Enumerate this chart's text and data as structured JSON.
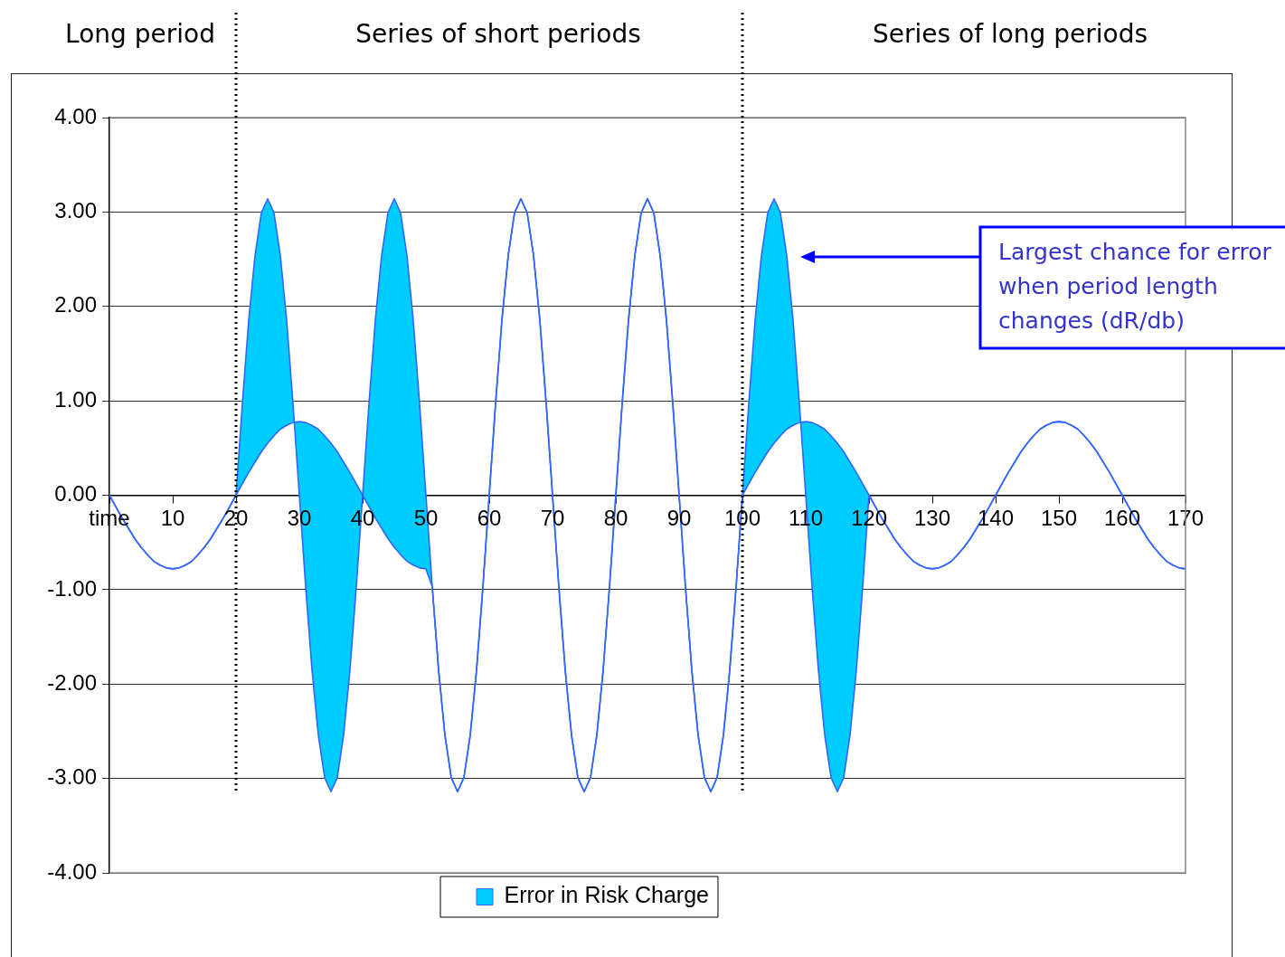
{
  "chart_data": {
    "type": "line",
    "x": [
      0,
      1,
      2,
      3,
      4,
      5,
      6,
      7,
      8,
      9,
      10,
      11,
      12,
      13,
      14,
      15,
      16,
      17,
      18,
      19,
      20,
      21,
      22,
      23,
      24,
      25,
      26,
      27,
      28,
      29,
      30,
      31,
      32,
      33,
      34,
      35,
      36,
      37,
      38,
      39,
      40,
      41,
      42,
      43,
      44,
      45,
      46,
      47,
      48,
      49,
      50,
      51,
      52,
      53,
      54,
      55,
      56,
      57,
      58,
      59,
      60,
      61,
      62,
      63,
      64,
      65,
      66,
      67,
      68,
      69,
      70,
      71,
      72,
      73,
      74,
      75,
      76,
      77,
      78,
      79,
      80,
      81,
      82,
      83,
      84,
      85,
      86,
      87,
      88,
      89,
      90,
      91,
      92,
      93,
      94,
      95,
      96,
      97,
      98,
      99,
      100,
      101,
      102,
      103,
      104,
      105,
      106,
      107,
      108,
      109,
      110,
      111,
      112,
      113,
      114,
      115,
      116,
      117,
      118,
      119,
      120,
      121,
      122,
      123,
      124,
      125,
      126,
      127,
      128,
      129,
      130,
      131,
      132,
      133,
      134,
      135,
      136,
      137,
      138,
      139,
      140,
      141,
      142,
      143,
      144,
      145,
      146,
      147,
      148,
      149,
      150,
      151,
      152,
      153,
      154,
      155,
      156,
      157,
      158,
      159,
      160,
      161,
      162,
      163,
      164,
      165,
      166,
      167,
      168,
      169,
      170
    ],
    "series": [
      {
        "color": "#3366ff",
        "values": [
          0,
          -0.12,
          -0.24,
          -0.35,
          -0.46,
          -0.55,
          -0.63,
          -0.7,
          -0.74,
          -0.77,
          -0.78,
          -0.77,
          -0.74,
          -0.7,
          -0.63,
          -0.55,
          -0.46,
          -0.35,
          -0.24,
          -0.12,
          0,
          0.97,
          1.85,
          2.54,
          2.99,
          3.14,
          2.99,
          2.54,
          1.85,
          0.97,
          0,
          -0.97,
          -1.85,
          -2.54,
          -2.99,
          -3.14,
          -2.99,
          -2.54,
          -1.85,
          -0.97,
          0,
          0.97,
          1.85,
          2.54,
          2.99,
          3.14,
          2.99,
          2.54,
          1.85,
          0.97,
          0,
          -0.97,
          -1.85,
          -2.54,
          -2.99,
          -3.14,
          -2.99,
          -2.54,
          -1.85,
          -0.97,
          0,
          0.97,
          1.85,
          2.54,
          2.99,
          3.14,
          2.99,
          2.54,
          1.85,
          0.97,
          0,
          -0.97,
          -1.85,
          -2.54,
          -2.99,
          -3.14,
          -2.99,
          -2.54,
          -1.85,
          -0.97,
          0,
          0.97,
          1.85,
          2.54,
          2.99,
          3.14,
          2.99,
          2.54,
          1.85,
          0.97,
          0,
          -0.97,
          -1.85,
          -2.54,
          -2.99,
          -3.14,
          -2.99,
          -2.54,
          -1.85,
          -0.97,
          0,
          0.97,
          1.85,
          2.54,
          2.99,
          3.14,
          2.99,
          2.54,
          1.85,
          0.97,
          0,
          -0.97,
          -1.85,
          -2.54,
          -2.99,
          -3.14,
          -2.99,
          -2.54,
          -1.85,
          -0.97,
          0,
          -0.12,
          -0.24,
          -0.35,
          -0.46,
          -0.55,
          -0.63,
          -0.7,
          -0.74,
          -0.77,
          -0.78,
          -0.77,
          -0.74,
          -0.7,
          -0.63,
          -0.55,
          -0.46,
          -0.35,
          -0.24,
          -0.12,
          0,
          0.12,
          0.24,
          0.35,
          0.46,
          0.55,
          0.63,
          0.7,
          0.74,
          0.77,
          0.78,
          0.77,
          0.74,
          0.7,
          0.63,
          0.55,
          0.46,
          0.35,
          0.24,
          0.12,
          0,
          -0.12,
          -0.24,
          -0.35,
          -0.46,
          -0.55,
          -0.63,
          -0.7,
          -0.74,
          -0.77,
          -0.78
        ]
      },
      {
        "name": "Error in Risk Charge",
        "color": "#3366ff",
        "values": [
          0,
          -0.12,
          -0.24,
          -0.35,
          -0.46,
          -0.55,
          -0.63,
          -0.7,
          -0.74,
          -0.77,
          -0.78,
          -0.77,
          -0.74,
          -0.7,
          -0.63,
          -0.55,
          -0.46,
          -0.35,
          -0.24,
          -0.12,
          0,
          0.12,
          0.24,
          0.35,
          0.46,
          0.55,
          0.63,
          0.7,
          0.74,
          0.77,
          0.78,
          0.77,
          0.74,
          0.7,
          0.63,
          0.55,
          0.46,
          0.35,
          0.24,
          0.12,
          0,
          -0.12,
          -0.24,
          -0.35,
          -0.46,
          -0.55,
          -0.63,
          -0.7,
          -0.74,
          -0.77,
          -0.78,
          -0.97,
          -1.85,
          -2.54,
          -2.99,
          -3.14,
          -2.99,
          -2.54,
          -1.85,
          -0.97,
          0,
          0.97,
          1.85,
          2.54,
          2.99,
          3.14,
          2.99,
          2.54,
          1.85,
          0.97,
          0,
          -0.97,
          -1.85,
          -2.54,
          -2.99,
          -3.14,
          -2.99,
          -2.54,
          -1.85,
          -0.97,
          0,
          0.97,
          1.85,
          2.54,
          2.99,
          3.14,
          2.99,
          2.54,
          1.85,
          0.97,
          0,
          -0.97,
          -1.85,
          -2.54,
          -2.99,
          -3.14,
          -2.99,
          -2.54,
          -1.85,
          -0.97,
          0,
          0.12,
          0.24,
          0.35,
          0.46,
          0.55,
          0.63,
          0.7,
          0.74,
          0.77,
          0.78,
          0.77,
          0.74,
          0.7,
          0.63,
          0.55,
          0.46,
          0.35,
          0.24,
          0.12,
          0,
          -0.12,
          -0.24,
          -0.35,
          -0.46,
          -0.55,
          -0.63,
          -0.7,
          -0.74,
          -0.77,
          -0.78,
          -0.77,
          -0.74,
          -0.7,
          -0.63,
          -0.55,
          -0.46,
          -0.35,
          -0.24,
          -0.12,
          0,
          0.12,
          0.24,
          0.35,
          0.46,
          0.55,
          0.63,
          0.7,
          0.74,
          0.77,
          0.78,
          0.77,
          0.74,
          0.7,
          0.63,
          0.55,
          0.46,
          0.35,
          0.24,
          0.12,
          0,
          -0.12,
          -0.24,
          -0.35,
          -0.46,
          -0.55,
          -0.63,
          -0.7,
          -0.74,
          -0.77,
          -0.78
        ],
        "lower": [
          0,
          -0.12,
          -0.24,
          -0.35,
          -0.46,
          -0.55,
          -0.63,
          -0.7,
          -0.74,
          -0.77,
          -0.78,
          -0.77,
          -0.74,
          -0.7,
          -0.63,
          -0.55,
          -0.46,
          -0.35,
          -0.24,
          -0.12,
          0,
          0.97,
          1.85,
          2.54,
          2.99,
          3.14,
          2.99,
          2.54,
          1.85,
          0.97,
          0,
          -0.97,
          -1.85,
          -2.54,
          -2.99,
          -3.14,
          -2.99,
          -2.54,
          -1.85,
          -0.97,
          0,
          0.97,
          1.85,
          2.54,
          2.99,
          3.14,
          2.99,
          2.54,
          1.85,
          0.97,
          0,
          -0.97,
          -1.85,
          -2.54,
          -2.99,
          -3.14,
          -2.99,
          -2.54,
          -1.85,
          -0.97,
          0,
          0.97,
          1.85,
          2.54,
          2.99,
          3.14,
          2.99,
          2.54,
          1.85,
          0.97,
          0,
          -0.97,
          -1.85,
          -2.54,
          -2.99,
          -3.14,
          -2.99,
          -2.54,
          -1.85,
          -0.97,
          0,
          0.97,
          1.85,
          2.54,
          2.99,
          3.14,
          2.99,
          2.54,
          1.85,
          0.97,
          0,
          -0.97,
          -1.85,
          -2.54,
          -2.99,
          -3.14,
          -2.99,
          -2.54,
          -1.85,
          -0.97,
          0,
          0.97,
          1.85,
          2.54,
          2.99,
          3.14,
          2.99,
          2.54,
          1.85,
          0.97,
          0,
          -0.97,
          -1.85,
          -2.54,
          -2.99,
          -3.14,
          -2.99,
          -2.54,
          -1.85,
          -0.97,
          0,
          -0.12,
          -0.24,
          -0.35,
          -0.46,
          -0.55,
          -0.63,
          -0.7,
          -0.74,
          -0.77,
          -0.78,
          -0.77,
          -0.74,
          -0.7,
          -0.63,
          -0.55,
          -0.46,
          -0.35,
          -0.24,
          -0.12,
          0,
          0.12,
          0.24,
          0.35,
          0.46,
          0.55,
          0.63,
          0.7,
          0.74,
          0.77,
          0.78,
          0.77,
          0.74,
          0.7,
          0.63,
          0.55,
          0.46,
          0.35,
          0.24,
          0.12,
          0,
          -0.12,
          -0.24,
          -0.35,
          -0.46,
          -0.55,
          -0.63,
          -0.7,
          -0.74,
          -0.77,
          -0.78
        ],
        "upper": [
          0,
          -0.12,
          -0.24,
          -0.35,
          -0.46,
          -0.55,
          -0.63,
          -0.7,
          -0.74,
          -0.77,
          -0.78,
          -0.77,
          -0.74,
          -0.7,
          -0.63,
          -0.55,
          -0.46,
          -0.35,
          -0.24,
          -0.12,
          0,
          0.12,
          0.24,
          0.35,
          0.46,
          0.55,
          0.63,
          0.7,
          0.74,
          0.77,
          0.78,
          0.77,
          0.74,
          0.7,
          0.63,
          0.55,
          0.46,
          0.35,
          0.24,
          0.12,
          0,
          -0.12,
          -0.24,
          -0.35,
          -0.46,
          -0.55,
          -0.63,
          -0.7,
          -0.74,
          -0.77,
          -0.78,
          -0.97,
          -1.85,
          -2.54,
          -2.99,
          -3.14,
          -2.99,
          -2.54,
          -1.85,
          -0.97,
          0,
          0.97,
          1.85,
          2.54,
          2.99,
          3.14,
          2.99,
          2.54,
          1.85,
          0.97,
          0,
          -0.97,
          -1.85,
          -2.54,
          -2.99,
          -3.14,
          -2.99,
          -2.54,
          -1.85,
          -0.97,
          0,
          0.97,
          1.85,
          2.54,
          2.99,
          3.14,
          2.99,
          2.54,
          1.85,
          0.97,
          0,
          -0.97,
          -1.85,
          -2.54,
          -2.99,
          -3.14,
          -2.99,
          -2.54,
          -1.85,
          -0.97,
          0,
          0.12,
          0.24,
          0.35,
          0.46,
          0.55,
          0.63,
          0.7,
          0.74,
          0.77,
          0.78,
          0.77,
          0.74,
          0.7,
          0.63,
          0.55,
          0.46,
          0.35,
          0.24,
          0.12,
          0,
          -0.12,
          -0.24,
          -0.35,
          -0.46,
          -0.55,
          -0.63,
          -0.7,
          -0.74,
          -0.77,
          -0.78,
          -0.77,
          -0.74,
          -0.7,
          -0.63,
          -0.55,
          -0.46,
          -0.35,
          -0.24,
          -0.12,
          0,
          0.12,
          0.24,
          0.35,
          0.46,
          0.55,
          0.63,
          0.7,
          0.74,
          0.77,
          0.78,
          0.77,
          0.74,
          0.7,
          0.63,
          0.55,
          0.46,
          0.35,
          0.24,
          0.12,
          0,
          -0.12,
          -0.24,
          -0.35,
          -0.46,
          -0.55,
          -0.63,
          -0.7,
          -0.74,
          -0.77,
          -0.78
        ]
      }
    ],
    "xlim": [
      0,
      170
    ],
    "xticks": [
      {
        "value": 0,
        "label": "time"
      },
      10,
      20,
      30,
      40,
      50,
      60,
      70,
      80,
      90,
      100,
      110,
      120,
      130,
      140,
      150,
      160,
      170
    ],
    "ylim": [
      -4,
      4
    ],
    "yticks": [
      {
        "value": -4,
        "label": "-4.00"
      },
      {
        "value": -3,
        "label": "-3.00"
      },
      {
        "value": -2,
        "label": "-2.00"
      },
      {
        "value": -1,
        "label": "-1.00"
      },
      {
        "value": 0,
        "label": "0.00"
      },
      {
        "value": 1,
        "label": "1.00"
      },
      {
        "value": 2,
        "label": "2.00"
      },
      {
        "value": 3,
        "label": "3.00"
      },
      {
        "value": 4,
        "label": "4.00"
      }
    ],
    "grid": "y",
    "legend": "bottom",
    "ref_lines": [
      {
        "axis": "x",
        "value": 20,
        "line_style": "dotted",
        "color": "#000000"
      },
      {
        "axis": "x",
        "value": 100,
        "line_style": "dotted",
        "color": "#000000"
      }
    ],
    "annotations": [
      "Long period",
      "Series of short periods",
      "Series of long periods",
      "Largest chance for error when period length changes (dR/db)"
    ]
  }
}
